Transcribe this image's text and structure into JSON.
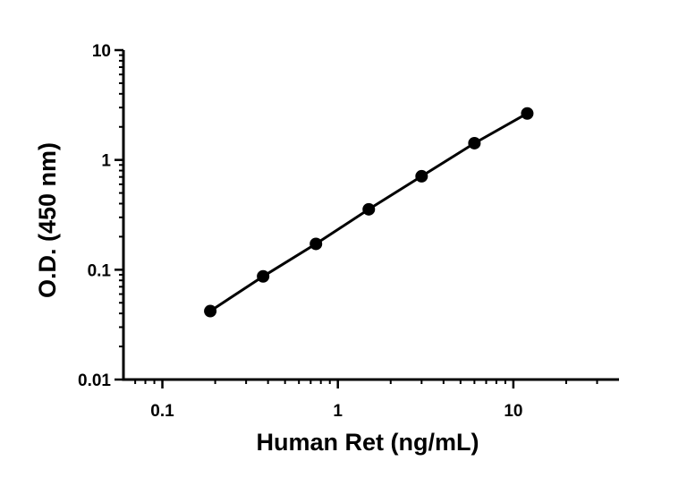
{
  "chart_data": {
    "type": "scatter",
    "title": "",
    "xlabel": "Human Ret (ng/mL)",
    "ylabel": "O.D. (450 nm)",
    "x_scale": "log",
    "y_scale": "log",
    "xlim": [
      0.06,
      40
    ],
    "ylim": [
      0.01,
      10
    ],
    "x_ticks": [
      {
        "value": 0.1,
        "label": "0.1"
      },
      {
        "value": 1,
        "label": "1"
      },
      {
        "value": 10,
        "label": "10"
      }
    ],
    "y_ticks": [
      {
        "value": 0.01,
        "label": "0.01"
      },
      {
        "value": 0.1,
        "label": "0.1"
      },
      {
        "value": 1,
        "label": "1"
      },
      {
        "value": 10,
        "label": "10"
      }
    ],
    "grid": false,
    "legend": "none",
    "marker_color": "#000000",
    "line_color": "#000000",
    "series": [
      {
        "x": [
          0.1875,
          0.375,
          0.75,
          1.5,
          3,
          6,
          12
        ],
        "y": [
          0.042,
          0.087,
          0.172,
          0.355,
          0.71,
          1.42,
          2.65
        ]
      }
    ]
  }
}
